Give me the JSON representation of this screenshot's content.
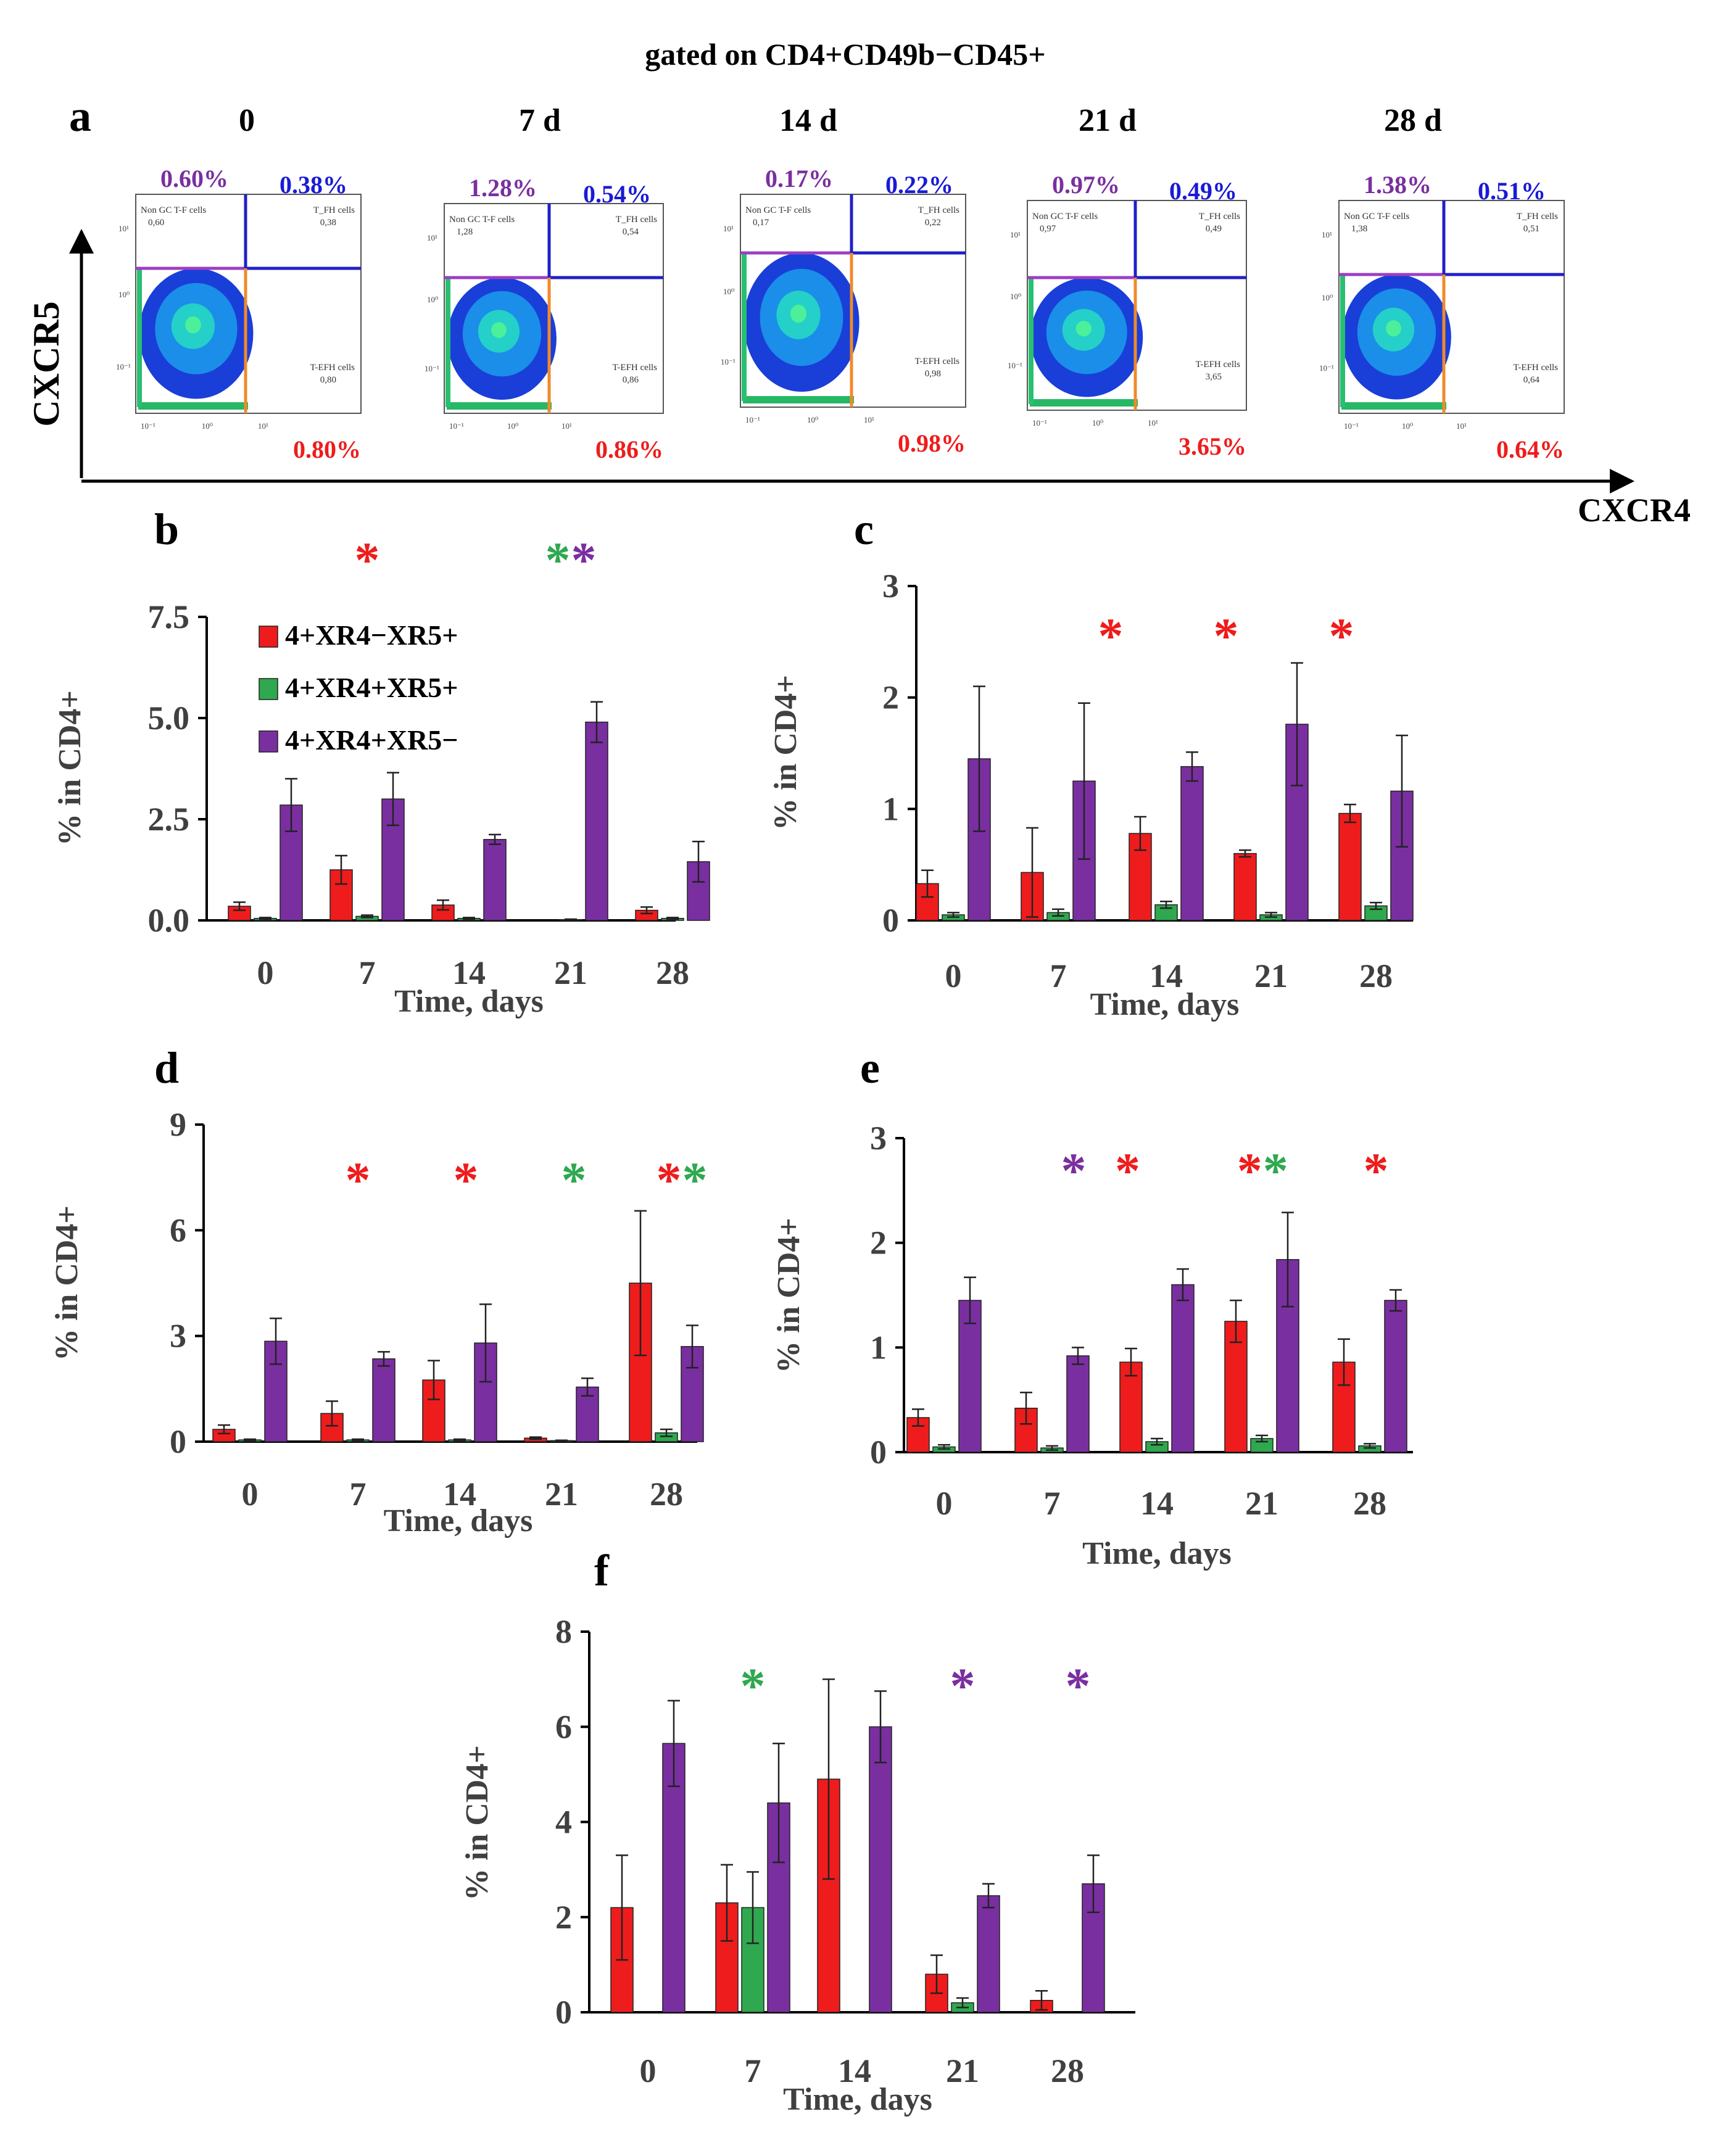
{
  "figure_title": "gated on CD4+CD49b−CD45+",
  "axes": {
    "y_label": "CXCR5",
    "x_label": "CXCR4"
  },
  "colors": {
    "red": "#ee1c1c",
    "green": "#2fa84f",
    "purple": "#7a2fa0",
    "blue": "#1a1ad6",
    "orange": "#f08a2a",
    "gate_purple": "#9b3fc4",
    "gate_blue": "#2020c8"
  },
  "panel_a": {
    "label": "a",
    "plots": [
      {
        "time": "0",
        "ul": "0.60%",
        "ur": "0.38%",
        "lr": "0.80%",
        "ul_small": "Non GC T-F cells",
        "ul_val": "0,60",
        "ur_small": "T_FH cells",
        "ur_val": "0,38",
        "lr_small": "T-EFH cells",
        "lr_val": "0,80"
      },
      {
        "time": "7 d",
        "ul": "1.28%",
        "ur": "0.54%",
        "lr": "0.86%",
        "ul_small": "Non GC T-F cells",
        "ul_val": "1,28",
        "ur_small": "T_FH cells",
        "ur_val": "0,54",
        "lr_small": "T-EFH cells",
        "lr_val": "0,86"
      },
      {
        "time": "14 d",
        "ul": "0.17%",
        "ur": "0.22%",
        "lr": "0.98%",
        "ul_small": "Non GC T-F cells",
        "ul_val": "0,17",
        "ur_small": "T_FH cells",
        "ur_val": "0,22",
        "lr_small": "T-EFH cells",
        "lr_val": "0,98"
      },
      {
        "time": "21 d",
        "ul": "0.97%",
        "ur": "0.49%",
        "lr": "3.65%",
        "ul_small": "Non GC T-F cells",
        "ul_val": "0,97",
        "ur_small": "T_FH cells",
        "ur_val": "0,49",
        "lr_small": "T-EFH cells",
        "lr_val": "3,65"
      },
      {
        "time": "28 d",
        "ul": "1.38%",
        "ur": "0.51%",
        "lr": "0.64%",
        "ul_small": "Non GC T-F cells",
        "ul_val": "1,38",
        "ur_small": "T_FH cells",
        "ur_val": "0,51",
        "lr_small": "T-EFH cells",
        "lr_val": "0,64"
      }
    ]
  },
  "chart_data": [
    {
      "panel": "b",
      "type": "bar",
      "title": "",
      "xlabel": "Time, days",
      "ylabel": "% in CD4+",
      "categories": [
        "0",
        "7",
        "14",
        "21",
        "28"
      ],
      "ylim": [
        0,
        7.5
      ],
      "yticks": [
        "0.0",
        "2.5",
        "5.0",
        "7.5"
      ],
      "ytick_values": [
        0,
        2.5,
        5,
        7.5
      ],
      "legend": [
        "4+XR4−XR5+",
        "4+XR4+XR5+",
        "4+XR4+XR5−"
      ],
      "series": [
        {
          "name": "4+XR4−XR5+",
          "color": "red",
          "values": [
            0.35,
            1.25,
            0.38,
            0.0,
            0.25
          ],
          "errors": [
            0.1,
            0.35,
            0.12,
            0.0,
            0.08
          ]
        },
        {
          "name": "4+XR4+XR5+",
          "color": "green",
          "values": [
            0.05,
            0.1,
            0.05,
            0.02,
            0.05
          ],
          "errors": [
            0.02,
            0.03,
            0.02,
            0.01,
            0.02
          ]
        },
        {
          "name": "4+XR4+XR5−",
          "color": "purple",
          "values": [
            2.85,
            3.0,
            2.0,
            4.9,
            1.45
          ],
          "errors": [
            0.65,
            0.65,
            0.12,
            0.5,
            0.5
          ]
        }
      ],
      "stars": [
        {
          "pos": 1,
          "colors": [
            "red"
          ]
        },
        {
          "pos": 3,
          "colors": [
            "green",
            "purple"
          ]
        }
      ]
    },
    {
      "panel": "c",
      "type": "bar",
      "title": "",
      "xlabel": "Time, days",
      "ylabel": "% in CD4+",
      "categories": [
        "0",
        "7",
        "14",
        "21",
        "28"
      ],
      "ylim": [
        0,
        3
      ],
      "yticks": [
        "0",
        "1",
        "2",
        "3"
      ],
      "ytick_values": [
        0,
        1,
        2,
        3
      ],
      "series": [
        {
          "name": "4+XR4−XR5+",
          "color": "red",
          "values": [
            0.33,
            0.43,
            0.78,
            0.6,
            0.96
          ],
          "errors": [
            0.12,
            0.4,
            0.15,
            0.03,
            0.08
          ]
        },
        {
          "name": "4+XR4+XR5+",
          "color": "green",
          "values": [
            0.05,
            0.07,
            0.14,
            0.05,
            0.13
          ],
          "errors": [
            0.02,
            0.03,
            0.03,
            0.02,
            0.03
          ]
        },
        {
          "name": "4+XR4+XR5−",
          "color": "purple",
          "values": [
            1.45,
            1.25,
            1.38,
            1.76,
            1.16
          ],
          "errors": [
            0.65,
            0.7,
            0.13,
            0.55,
            0.5
          ]
        }
      ],
      "stars": [
        {
          "pos": 1.5,
          "colors": [
            "red"
          ]
        },
        {
          "pos": 2.6,
          "colors": [
            "red"
          ]
        },
        {
          "pos": 3.7,
          "colors": [
            "red"
          ]
        }
      ]
    },
    {
      "panel": "d",
      "type": "bar",
      "title": "",
      "xlabel": "Time, days",
      "ylabel": "% in CD4+",
      "categories": [
        "0",
        "7",
        "14",
        "21",
        "28"
      ],
      "ylim": [
        0,
        9
      ],
      "yticks": [
        "0",
        "3",
        "6",
        "9"
      ],
      "ytick_values": [
        0,
        3,
        6,
        9
      ],
      "series": [
        {
          "name": "4+XR4−XR5+",
          "color": "red",
          "values": [
            0.35,
            0.8,
            1.75,
            0.1,
            4.5
          ],
          "errors": [
            0.12,
            0.35,
            0.55,
            0.03,
            2.05
          ]
        },
        {
          "name": "4+XR4+XR5+",
          "color": "green",
          "values": [
            0.05,
            0.05,
            0.05,
            0.03,
            0.25
          ],
          "errors": [
            0.02,
            0.02,
            0.02,
            0.01,
            0.1
          ]
        },
        {
          "name": "4+XR4+XR5−",
          "color": "purple",
          "values": [
            2.85,
            2.35,
            2.8,
            1.55,
            2.7
          ],
          "errors": [
            0.65,
            0.2,
            1.1,
            0.25,
            0.6
          ]
        }
      ],
      "stars": [
        {
          "pos": 1,
          "colors": [
            "red"
          ]
        },
        {
          "pos": 2,
          "colors": [
            "red"
          ]
        },
        {
          "pos": 3,
          "colors": [
            "green"
          ]
        },
        {
          "pos": 4,
          "colors": [
            "red",
            "green"
          ]
        }
      ]
    },
    {
      "panel": "e",
      "type": "bar",
      "title": "",
      "xlabel": "Time, days",
      "ylabel": "% in CD4+",
      "categories": [
        "0",
        "7",
        "14",
        "21",
        "28"
      ],
      "ylim": [
        0,
        3
      ],
      "yticks": [
        "0",
        "1",
        "2",
        "3"
      ],
      "ytick_values": [
        0,
        1,
        2,
        3
      ],
      "series": [
        {
          "name": "4+XR4−XR5+",
          "color": "red",
          "values": [
            0.33,
            0.42,
            0.86,
            1.25,
            0.86
          ],
          "errors": [
            0.08,
            0.15,
            0.13,
            0.2,
            0.22
          ]
        },
        {
          "name": "4+XR4+XR5+",
          "color": "green",
          "values": [
            0.05,
            0.04,
            0.1,
            0.13,
            0.06
          ],
          "errors": [
            0.02,
            0.02,
            0.03,
            0.03,
            0.02
          ]
        },
        {
          "name": "4+XR4+XR5−",
          "color": "purple",
          "values": [
            1.45,
            0.92,
            1.6,
            1.84,
            1.45
          ],
          "errors": [
            0.22,
            0.08,
            0.15,
            0.45,
            0.1
          ]
        }
      ],
      "stars": [
        {
          "pos": 1.2,
          "colors": [
            "purple"
          ]
        },
        {
          "pos": 1.7,
          "colors": [
            "red"
          ]
        },
        {
          "pos": 2.95,
          "colors": [
            "red",
            "green"
          ]
        },
        {
          "pos": 4.0,
          "colors": [
            "red"
          ]
        }
      ]
    },
    {
      "panel": "f",
      "type": "bar",
      "title": "",
      "xlabel": "Time, days",
      "ylabel": "% in CD4+",
      "categories": [
        "0",
        "7",
        "14",
        "21",
        "28"
      ],
      "ylim": [
        0,
        8
      ],
      "yticks": [
        "0",
        "2",
        "4",
        "6",
        "8"
      ],
      "ytick_values": [
        0,
        2,
        4,
        6,
        8
      ],
      "series": [
        {
          "name": "4+XR4−XR5+",
          "color": "red",
          "values": [
            2.2,
            2.3,
            4.9,
            0.8,
            0.25
          ],
          "errors": [
            1.1,
            0.8,
            2.1,
            0.4,
            0.2
          ]
        },
        {
          "name": "4+XR4+XR5+",
          "color": "green",
          "values": [
            0.0,
            2.2,
            0.0,
            0.2,
            0.0
          ],
          "errors": [
            0.0,
            0.75,
            0.0,
            0.1,
            0.0
          ]
        },
        {
          "name": "4+XR4+XR5−",
          "color": "purple",
          "values": [
            5.65,
            4.4,
            6.0,
            2.45,
            2.7
          ],
          "errors": [
            0.9,
            1.25,
            0.75,
            0.25,
            0.6
          ]
        }
      ],
      "stars": [
        {
          "pos": 1,
          "colors": [
            "green"
          ]
        },
        {
          "pos": 3,
          "colors": [
            "purple"
          ]
        },
        {
          "pos": 4.1,
          "colors": [
            "purple"
          ]
        }
      ]
    }
  ]
}
